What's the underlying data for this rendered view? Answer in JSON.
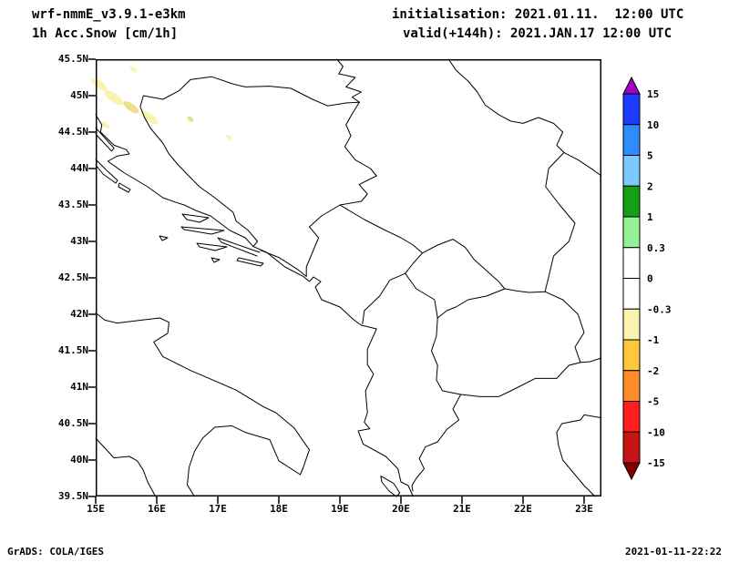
{
  "header": {
    "model": "wrf-nmmE_v3.9.1-e3km",
    "field": "1h Acc.Snow [cm/1h]",
    "init_line": "initialisation: 2021.01.11.  12:00 UTC",
    "valid_line": "valid(+144h): 2021.JAN.17 12:00 UTC"
  },
  "footer": {
    "credit": "GrADS: COLA/IGES",
    "generated": "2021-01-11-22:22"
  },
  "axes": {
    "lat_labels": [
      "45.5N",
      "45N",
      "44.5N",
      "44N",
      "43.5N",
      "43N",
      "42.5N",
      "42N",
      "41.5N",
      "41N",
      "40.5N",
      "40N",
      "39.5N"
    ],
    "lon_labels": [
      "15E",
      "16E",
      "17E",
      "18E",
      "19E",
      "20E",
      "21E",
      "22E",
      "23E"
    ]
  },
  "colorbar": {
    "labels": [
      "15",
      "10",
      "5",
      "2",
      "1",
      "0.3",
      "0",
      "-0.3",
      "-1",
      "-2",
      "-5",
      "-10",
      "-15"
    ],
    "colors_top_to_bottom": [
      "#A000C8",
      "#1E3CFF",
      "#2E8CFF",
      "#7DC8FF",
      "#14A014",
      "#96F096",
      "#FFFFFF",
      "#FFFFFF",
      "#FAF3B0",
      "#FFC83C",
      "#FF8C28",
      "#FF1E1E",
      "#C81414",
      "#820000"
    ]
  },
  "chart_data": {
    "type": "heatmap",
    "title": "1h Acc.Snow [cm/1h]",
    "model": "wrf-nmmE_v3.9.1-e3km",
    "initialisation": "2021.01.11.  12:00 UTC",
    "valid": "2021.JAN.17 12:00 UTC",
    "lead": "+144h",
    "lon_range_deg_e": [
      15,
      23.3
    ],
    "lat_range_deg_n": [
      39.5,
      45.5
    ],
    "levels_top_to_bottom": [
      15,
      10,
      5,
      2,
      1,
      0.3,
      0,
      -0.3,
      -1,
      -2,
      -5,
      -10,
      -15
    ],
    "palette_top_to_bottom": [
      "#A000C8",
      "#1E3CFF",
      "#2E8CFF",
      "#7DC8FF",
      "#14A014",
      "#96F096",
      "#FFFFFF",
      "#FFFFFF",
      "#FAF3B0",
      "#FFC83C",
      "#FF8C28",
      "#FF1E1E",
      "#C81414",
      "#820000"
    ],
    "snow_patches": [
      {
        "lon": 15.06,
        "lat": 45.15,
        "w_deg": 0.3,
        "h_deg": 0.1,
        "rot_deg": 35,
        "color": "#FAF3B0",
        "bin": "-0.3 to -1"
      },
      {
        "lon": 15.3,
        "lat": 44.97,
        "w_deg": 0.36,
        "h_deg": 0.12,
        "rot_deg": 35,
        "color": "#FAF3B0",
        "bin": "-0.3 to -1"
      },
      {
        "lon": 15.58,
        "lat": 44.84,
        "w_deg": 0.3,
        "h_deg": 0.1,
        "rot_deg": 35,
        "color": "#EDE08C",
        "bin": "-0.3 to -1"
      },
      {
        "lon": 15.88,
        "lat": 44.7,
        "w_deg": 0.34,
        "h_deg": 0.1,
        "rot_deg": 35,
        "color": "#FAF3B0",
        "bin": "-0.3 to -1"
      },
      {
        "lon": 15.16,
        "lat": 44.6,
        "w_deg": 0.16,
        "h_deg": 0.07,
        "rot_deg": 35,
        "color": "#FAF3B0",
        "bin": "-0.3 to -1"
      },
      {
        "lon": 16.55,
        "lat": 44.68,
        "w_deg": 0.12,
        "h_deg": 0.06,
        "rot_deg": 35,
        "color": "#EDE08C",
        "bin": "-0.3 to -1"
      },
      {
        "lon": 17.18,
        "lat": 44.43,
        "w_deg": 0.1,
        "h_deg": 0.05,
        "rot_deg": 35,
        "color": "#FAF3B0",
        "bin": "-0.3 to -1"
      },
      {
        "lon": 15.62,
        "lat": 45.36,
        "w_deg": 0.14,
        "h_deg": 0.06,
        "rot_deg": 35,
        "color": "#FAF3B0",
        "bin": "-0.3 to -1"
      }
    ]
  }
}
